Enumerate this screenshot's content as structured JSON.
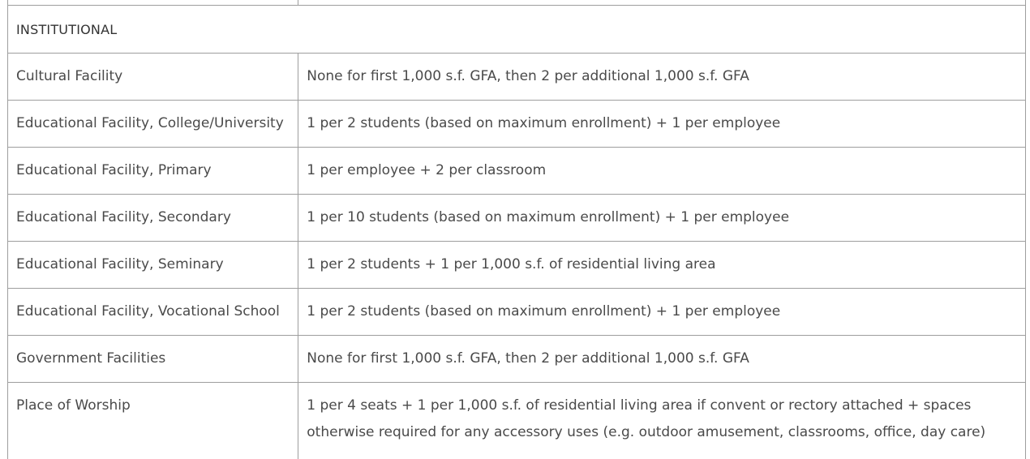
{
  "table": {
    "section_header": "INSTITUTIONAL",
    "rows": [
      {
        "use": "Cultural Facility",
        "requirement": "None for first 1,000 s.f. GFA, then 2 per additional 1,000 s.f. GFA"
      },
      {
        "use": "Educational Facility, College/University",
        "requirement": "1 per 2 students (based on maximum enrollment) + 1 per employee"
      },
      {
        "use": "Educational Facility, Primary",
        "requirement": "1 per employee + 2 per classroom"
      },
      {
        "use": "Educational Facility, Secondary",
        "requirement": "1 per 10 students (based on maximum enrollment) + 1 per employee"
      },
      {
        "use": "Educational Facility, Seminary",
        "requirement": "1 per 2 students + 1 per 1,000 s.f. of residential living area"
      },
      {
        "use": "Educational Facility, Vocational School",
        "requirement": "1 per 2 students (based on maximum enrollment) + 1 per employee"
      },
      {
        "use": "Government Facilities",
        "requirement": "None for first 1,000 s.f. GFA, then 2 per additional 1,000 s.f. GFA"
      },
      {
        "use": "Place of Worship",
        "requirement": "1 per 4 seats + 1 per 1,000 s.f. of residential living area if convent or rectory attached + spaces otherwise required for any accessory uses (e.g. outdoor amusement, classrooms, office, day care)"
      }
    ]
  }
}
